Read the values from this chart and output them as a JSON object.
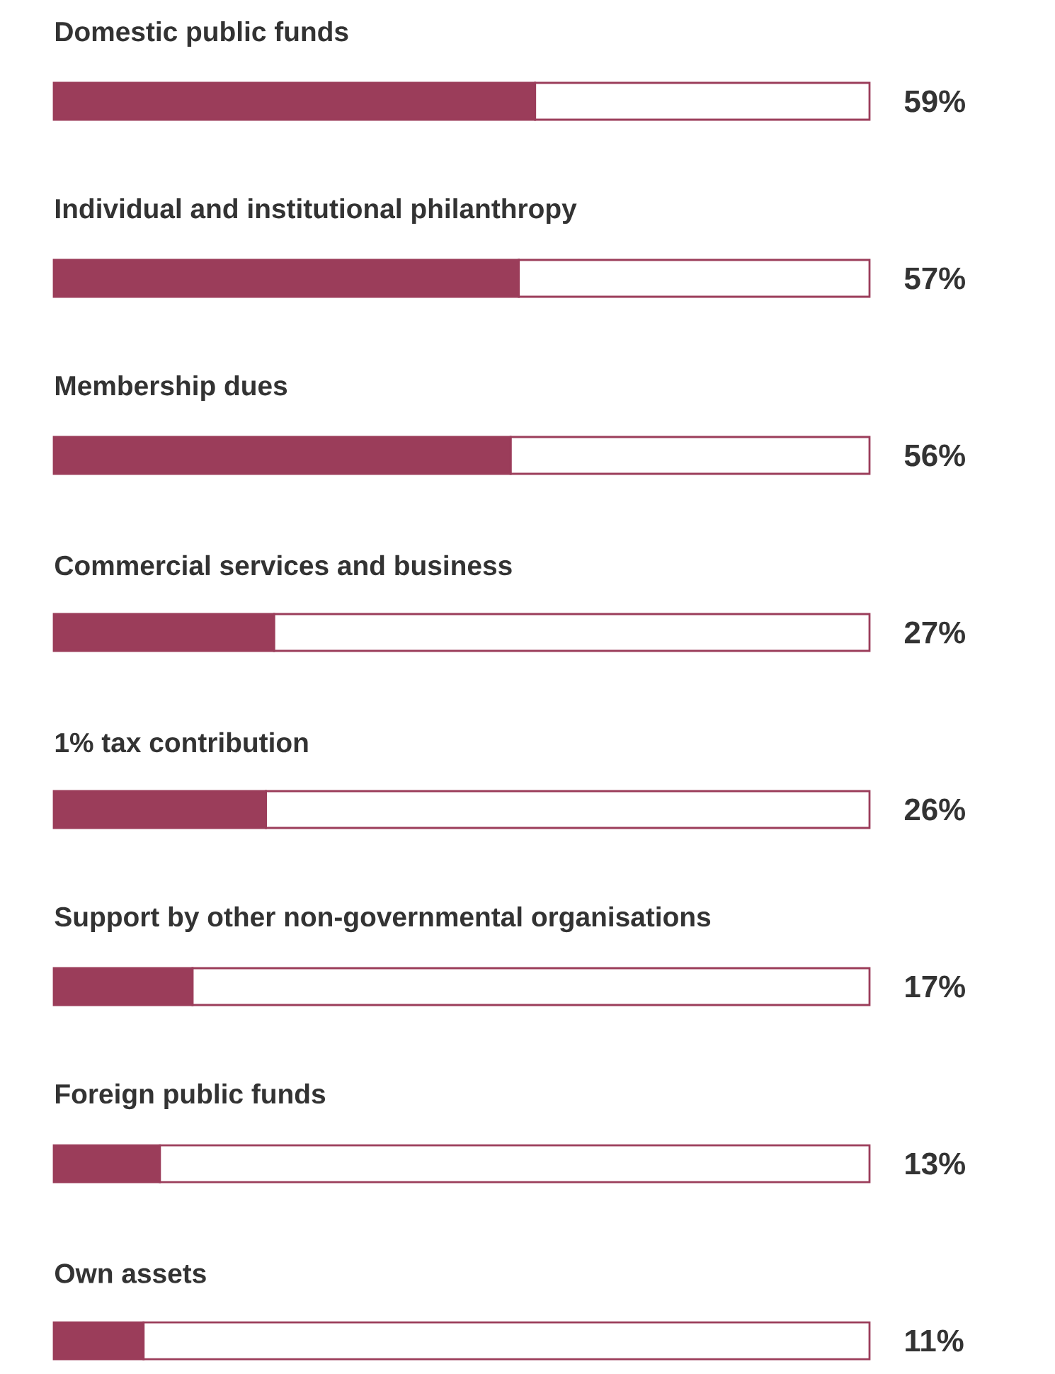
{
  "chart_data": {
    "type": "bar",
    "orientation": "horizontal",
    "stacked": true,
    "categories": [
      "Domestic public funds",
      "Individual and institutional philanthropy",
      "Membership dues",
      "Commercial services and business",
      "1% tax contribution",
      "Support by other non-governmental organisations",
      "Foreign public funds",
      "Own assets"
    ],
    "series": [
      {
        "color": "#9b3d5a",
        "values": [
          59,
          57,
          56,
          27,
          26,
          17,
          13,
          11
        ],
        "value_labels": [
          "59%",
          "57%",
          "56%",
          "27%",
          "26%",
          "17%",
          "13%",
          "11%"
        ]
      },
      {
        "color": "#ffffff",
        "values": [
          41,
          43,
          44,
          73,
          74,
          83,
          87,
          89
        ]
      }
    ],
    "xlim": [
      0,
      100
    ],
    "tick_labels": false
  }
}
